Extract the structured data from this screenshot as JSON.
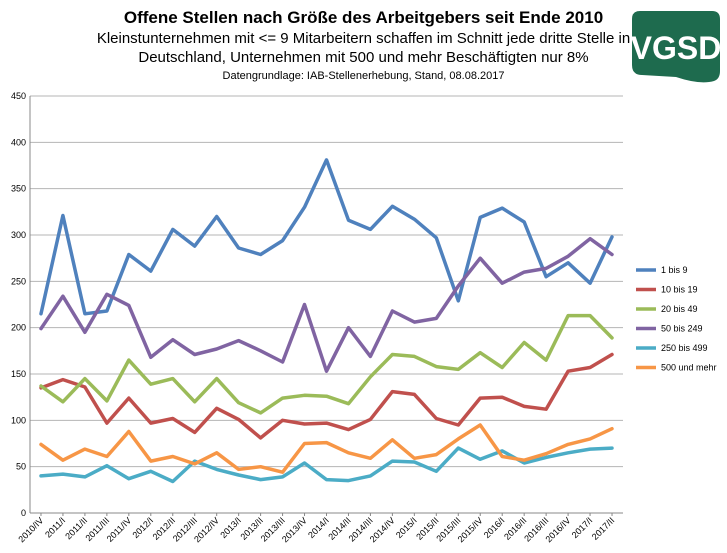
{
  "header": {
    "title": "Offene Stellen nach Größe des Arbeitgebers seit Ende 2010",
    "subtitle_line1": "Kleinstunternehmen mit <= 9 Mitarbeitern schaffen im Schnitt jede dritte Stelle in",
    "subtitle_line2": "Deutschland, Unternehmen mit 500 und mehr Beschäftigten nur 8%",
    "source": "Datengrundlage: IAB-Stellenerhebung, Stand, 08.08.2017"
  },
  "logo": {
    "text": "VGSD",
    "color": "#1e6b4e"
  },
  "chart_data": {
    "type": "line",
    "title": "Offene Stellen nach Größe des Arbeitgebers seit Ende 2010",
    "xlabel": "",
    "ylabel": "",
    "ylim": [
      0,
      450
    ],
    "yticks": [
      0,
      50,
      100,
      150,
      200,
      250,
      300,
      350,
      400,
      450
    ],
    "grid": true,
    "legend_position": "right",
    "categories": [
      "2010/IV",
      "2011/I",
      "2011/II",
      "2011/III",
      "2011/IV",
      "2012/I",
      "2012/II",
      "2012/III",
      "2012/IV",
      "2013/I",
      "2013/II",
      "2013/III",
      "2013/IV",
      "2014/I",
      "2014/II",
      "2014/III",
      "2014/IV",
      "2015/I",
      "2015/II",
      "2015/III",
      "2015/IV",
      "2016/I",
      "2016/II",
      "2016/III",
      "2016/IV",
      "2017/I",
      "2017/II"
    ],
    "series": [
      {
        "name": "1 bis 9",
        "color": "#4f81bd",
        "values": [
          215,
          321,
          215,
          218,
          279,
          261,
          306,
          288,
          320,
          286,
          279,
          294,
          330,
          381,
          316,
          306,
          331,
          317,
          297,
          229,
          319,
          329,
          314,
          255,
          270,
          248,
          298
        ]
      },
      {
        "name": "10 bis 19",
        "color": "#c0504d",
        "values": [
          135,
          144,
          136,
          97,
          124,
          97,
          102,
          87,
          113,
          101,
          81,
          100,
          96,
          97,
          90,
          101,
          131,
          128,
          102,
          95,
          124,
          125,
          115,
          112,
          153,
          157,
          171
        ]
      },
      {
        "name": "20 bis 49",
        "color": "#9bbb59",
        "values": [
          137,
          120,
          145,
          121,
          165,
          139,
          145,
          120,
          145,
          119,
          108,
          124,
          127,
          126,
          118,
          147,
          171,
          169,
          158,
          155,
          173,
          157,
          184,
          165,
          213,
          213,
          189
        ]
      },
      {
        "name": "50 bis 249",
        "color": "#8064a2",
        "values": [
          199,
          234,
          195,
          236,
          224,
          168,
          187,
          171,
          177,
          186,
          175,
          163,
          225,
          153,
          200,
          169,
          218,
          206,
          210,
          245,
          275,
          248,
          260,
          264,
          277,
          296,
          279
        ]
      },
      {
        "name": "250 bis 499",
        "color": "#4bacc6",
        "values": [
          40,
          42,
          39,
          51,
          37,
          45,
          34,
          56,
          47,
          41,
          36,
          39,
          54,
          36,
          35,
          40,
          56,
          55,
          45,
          70,
          58,
          67,
          54,
          60,
          65,
          69,
          70
        ]
      },
      {
        "name": "500 und mehr",
        "color": "#f79646",
        "values": [
          74,
          57,
          69,
          61,
          88,
          56,
          61,
          53,
          65,
          47,
          50,
          44,
          75,
          76,
          65,
          59,
          79,
          59,
          63,
          80,
          95,
          61,
          57,
          64,
          74,
          80,
          91
        ]
      }
    ]
  }
}
